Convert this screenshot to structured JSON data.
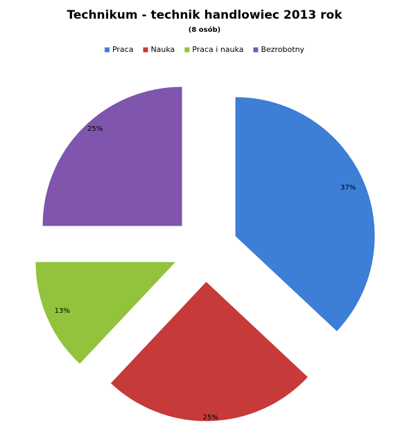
{
  "chart_data": {
    "type": "pie",
    "title": "Technikum - technik handlowiec 2013 rok",
    "subtitle": "(8 osób)",
    "categories": [
      "Praca",
      "Nauka",
      "Praca i nauka",
      "Bezrobotny"
    ],
    "values": [
      37,
      25,
      13,
      25
    ],
    "value_labels": [
      "37%",
      "25%",
      "13%",
      "25%"
    ],
    "colors": [
      "#3d7ed6",
      "#c63a3a",
      "#93c23c",
      "#7f55ad"
    ],
    "legend": "top"
  }
}
